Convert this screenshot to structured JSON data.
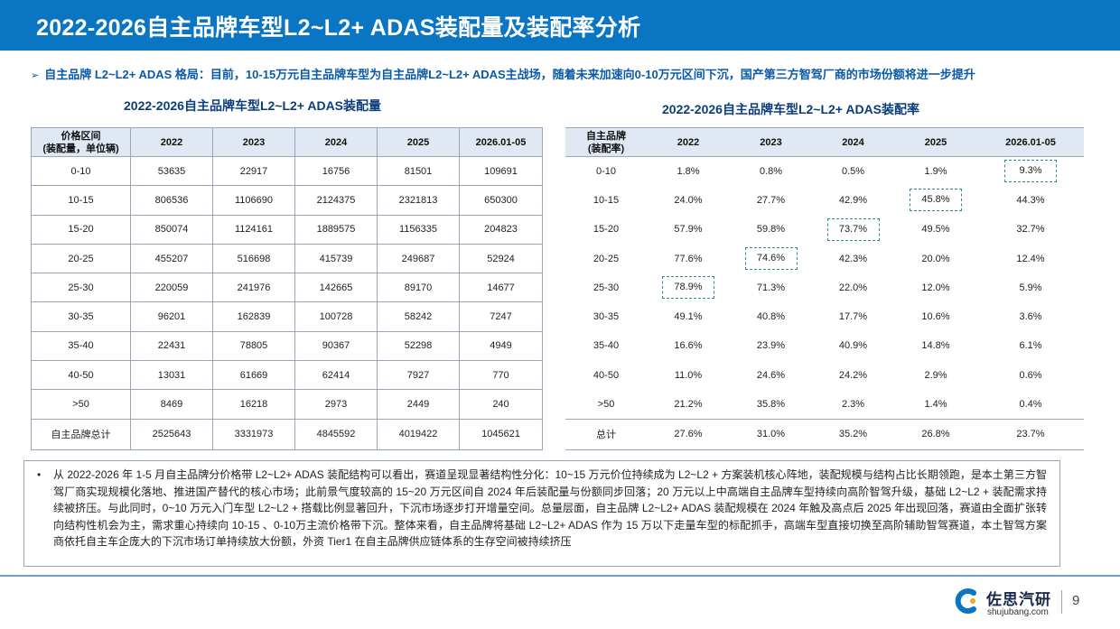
{
  "header": {
    "title": "2022-2026自主品牌车型L2~L2+ ADAS装配量及装配率分析"
  },
  "subtitle": {
    "arrow": "➢",
    "text": "自主品牌 L2~L2+ ADAS 格局：目前，10-15万元自主品牌车型为自主品牌L2~L2+ ADAS主战场，随着未来加速向0-10万元区间下沉，国产第三方智驾厂商的市场份额将进一步提升"
  },
  "volume_table": {
    "title": "2022-2026自主品牌车型L2~L2+ ADAS装配量",
    "header_line1": "价格区间",
    "header_line2": "(装配量，单位辆)",
    "columns": [
      "2022",
      "2023",
      "2024",
      "2025",
      "2026.01-05"
    ],
    "rows": [
      {
        "label": "0-10",
        "values": [
          "53635",
          "22917",
          "16756",
          "81501",
          "109691"
        ]
      },
      {
        "label": "10-15",
        "values": [
          "806536",
          "1106690",
          "2124375",
          "2321813",
          "650300"
        ]
      },
      {
        "label": "15-20",
        "values": [
          "850074",
          "1124161",
          "1889575",
          "1156335",
          "204823"
        ]
      },
      {
        "label": "20-25",
        "values": [
          "455207",
          "516698",
          "415739",
          "249687",
          "52924"
        ]
      },
      {
        "label": "25-30",
        "values": [
          "220059",
          "241976",
          "142665",
          "89170",
          "14677"
        ]
      },
      {
        "label": "30-35",
        "values": [
          "96201",
          "162839",
          "100728",
          "58242",
          "7247"
        ]
      },
      {
        "label": "35-40",
        "values": [
          "22431",
          "78805",
          "90367",
          "52298",
          "4949"
        ]
      },
      {
        "label": "40-50",
        "values": [
          "13031",
          "61669",
          "62414",
          "7927",
          "770"
        ]
      },
      {
        "label": ">50",
        "values": [
          "8469",
          "16218",
          "2973",
          "2449",
          "240"
        ]
      }
    ],
    "total": {
      "label": "自主品牌总计",
      "values": [
        "2525643",
        "3331973",
        "4845592",
        "4019422",
        "1045621"
      ]
    }
  },
  "rate_table": {
    "title": "2022-2026自主品牌车型L2~L2+ ADAS装配率",
    "header_line1": "自主品牌",
    "header_line2": "(装配率)",
    "columns": [
      "2022",
      "2023",
      "2024",
      "2025",
      "2026.01-05"
    ],
    "rows": [
      {
        "label": "0-10",
        "values": [
          "1.8%",
          "0.8%",
          "0.5%",
          "1.9%",
          "9.3%"
        ],
        "highlight": 4
      },
      {
        "label": "10-15",
        "values": [
          "24.0%",
          "27.7%",
          "42.9%",
          "45.8%",
          "44.3%"
        ],
        "highlight": 3
      },
      {
        "label": "15-20",
        "values": [
          "57.9%",
          "59.8%",
          "73.7%",
          "49.5%",
          "32.7%"
        ],
        "highlight": 2
      },
      {
        "label": "20-25",
        "values": [
          "77.6%",
          "74.6%",
          "42.3%",
          "20.0%",
          "12.4%"
        ],
        "highlight": 1
      },
      {
        "label": "25-30",
        "values": [
          "78.9%",
          "71.3%",
          "22.0%",
          "12.0%",
          "5.9%"
        ],
        "highlight": 0
      },
      {
        "label": "30-35",
        "values": [
          "49.1%",
          "40.8%",
          "17.7%",
          "10.6%",
          "3.6%"
        ],
        "highlight": -1
      },
      {
        "label": "35-40",
        "values": [
          "16.6%",
          "23.9%",
          "40.9%",
          "14.8%",
          "6.1%"
        ],
        "highlight": -1
      },
      {
        "label": "40-50",
        "values": [
          "11.0%",
          "24.6%",
          "24.2%",
          "2.9%",
          "0.6%"
        ],
        "highlight": -1
      },
      {
        "label": ">50",
        "values": [
          "21.2%",
          "35.8%",
          "2.3%",
          "1.4%",
          "0.4%"
        ],
        "highlight": -1
      }
    ],
    "total": {
      "label": "总计",
      "values": [
        "27.6%",
        "31.0%",
        "35.2%",
        "26.8%",
        "23.7%"
      ]
    }
  },
  "note": {
    "bullet": "•",
    "text": "从 2022-2026 年 1-5 月自主品牌分价格带 L2~L2+ ADAS 装配结构可以看出，赛道呈现显著结构性分化：10~15 万元价位持续成为 L2~L2 + 方案装机核心阵地，装配规模与结构占比长期领跑，是本土第三方智驾厂商实现规模化落地、推进国产替代的核心市场；此前景气度较高的 15~20 万元区间自 2024 年后装配量与份额同步回落；20 万元以上中高端自主品牌车型持续向高阶智驾升级，基础 L2~L2 + 装配需求持续被挤压。与此同时，0~10 万元入门车型 L2~L2 + 搭载比例显著回升，下沉市场逐步打开增量空间。总量层面，自主品牌 L2~L2+ ADAS 装配规模在 2024 年触及高点后 2025 年出现回落，赛道由全面扩张转向结构性机会为主，需求重心持续向 10-15 、0-10万主流价格带下沉。整体来看，自主品牌将基础 L2~L2+ ADAS 作为 15 万以下走量车型的标配抓手，高端车型直接切换至高阶辅助智驾赛道，本土智驾方案商依托自主车企庞大的下沉市场订单持续放大份额，外资 Tier1 在自主品牌供应链体系的生存空间被持续挤压"
  },
  "footer": {
    "brand": "佐思汽研",
    "url": "shujubang.com",
    "page": "9"
  },
  "colors": {
    "header": "#0a75c2",
    "table_header": "#dfe8f3",
    "highlight_border": "#2a8a9a"
  }
}
